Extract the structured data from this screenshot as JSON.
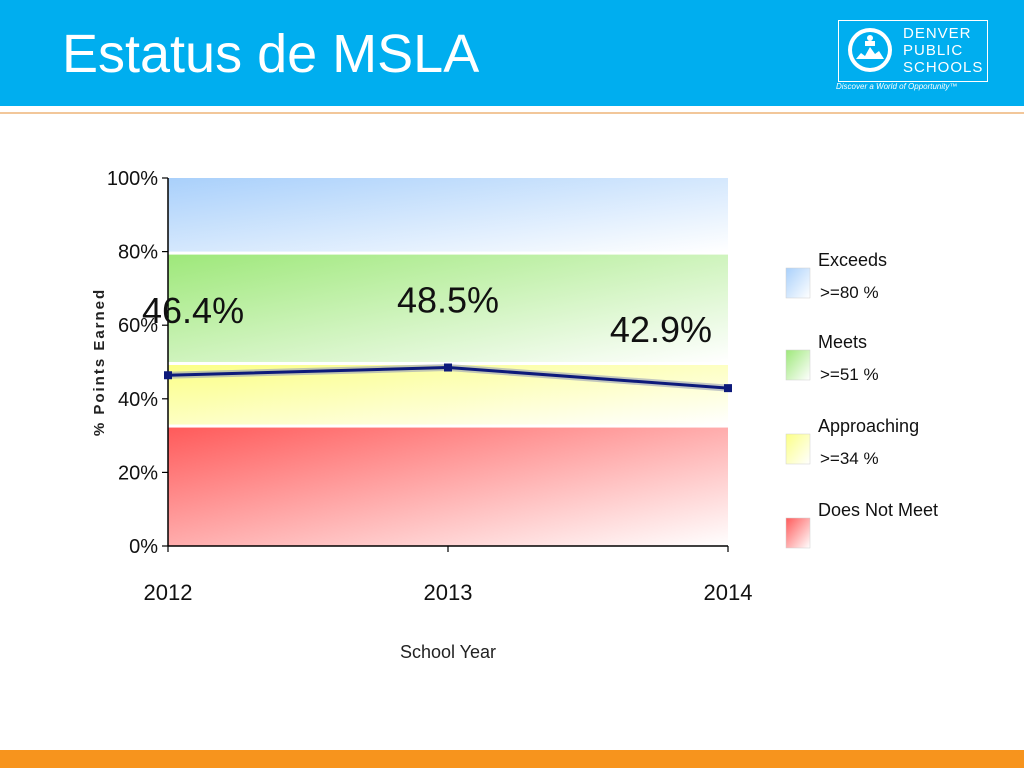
{
  "slide": {
    "title": "Estatus de MSLA"
  },
  "logo": {
    "line1": "DENVER",
    "line2": "PUBLIC",
    "line3": "SCHOOLS",
    "tagline": "Discover a World of Opportunity™"
  },
  "colors": {
    "header": "#00aeef",
    "footer": "#f7941d",
    "series_line": "#0d1a7a",
    "exceeds": "#a9d0fb",
    "meets": "#9ee87a",
    "approaching": "#fbff86",
    "does_not_meet": "#ff5a5a"
  },
  "chart_data": {
    "type": "line",
    "x": [
      "2012",
      "2013",
      "2014"
    ],
    "series": [
      {
        "values": [
          46.4,
          48.5,
          42.9
        ],
        "labels": [
          "46.4%",
          "48.5%",
          "42.9%"
        ]
      }
    ],
    "bands": [
      {
        "name": "Exceeds",
        "threshold": ">=80 %",
        "from": 80,
        "to": 100
      },
      {
        "name": "Meets",
        "threshold": ">=51 %",
        "from": 50,
        "to": 80
      },
      {
        "name": "Approaching",
        "threshold": ">=34 %",
        "from": 33,
        "to": 50
      },
      {
        "name": "Does Not Meet",
        "threshold": "",
        "from": 0,
        "to": 33
      }
    ],
    "yticks": [
      0,
      20,
      40,
      60,
      80,
      100
    ],
    "ytick_labels": [
      "0%",
      "20%",
      "40%",
      "60%",
      "80%",
      "100%"
    ],
    "ylim": [
      0,
      100
    ],
    "xlabel": "School Year",
    "ylabel": "% Points Earned",
    "legend_position": "right"
  }
}
